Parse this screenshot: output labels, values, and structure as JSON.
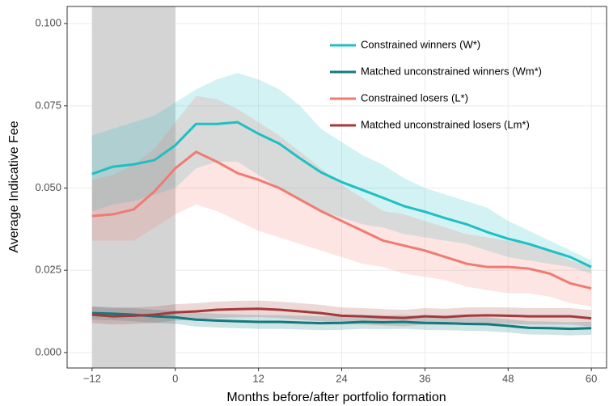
{
  "chart_data": {
    "type": "line",
    "x_label": "Months before/after portfolio formation",
    "y_label": "Average Indicative Fee",
    "xlim": [
      -15.6,
      62.2
    ],
    "ylim": [
      -0.0047,
      0.1052
    ],
    "xticks": [
      {
        "value": -12,
        "label": "−12"
      },
      0,
      12,
      24,
      36,
      48,
      60
    ],
    "yticks": [
      {
        "value": 0,
        "label": "0.000"
      },
      {
        "value": 0.025,
        "label": "0.025"
      },
      {
        "value": 0.05,
        "label": "0.050"
      },
      {
        "value": 0.075,
        "label": "0.075"
      },
      {
        "value": 0.1,
        "label": "0.100"
      }
    ],
    "grid": true,
    "legend_position": "top-right",
    "shaded_region": {
      "x": [
        -12,
        0
      ],
      "color": "#d4d4d4"
    },
    "band_opacity": 0.2,
    "x": [
      -12,
      -9,
      -6,
      -3,
      0,
      3,
      6,
      9,
      12,
      15,
      18,
      21,
      24,
      27,
      30,
      33,
      36,
      39,
      42,
      45,
      48,
      51,
      54,
      57,
      60
    ],
    "series": [
      {
        "name": "Constrained winners (W*)",
        "color": "#1fbfc4",
        "values": [
          0.0543,
          0.0565,
          0.0572,
          0.0585,
          0.063,
          0.0695,
          0.0695,
          0.07,
          0.0665,
          0.0635,
          0.059,
          0.0548,
          0.0518,
          0.0494,
          0.047,
          0.0445,
          0.0428,
          0.0408,
          0.039,
          0.0366,
          0.0346,
          0.033,
          0.031,
          0.029,
          0.026
        ],
        "upper": [
          0.066,
          0.068,
          0.07,
          0.072,
          0.076,
          0.08,
          0.083,
          0.085,
          0.083,
          0.08,
          0.075,
          0.068,
          0.064,
          0.06,
          0.057,
          0.053,
          0.05,
          0.048,
          0.046,
          0.044,
          0.04,
          0.037,
          0.034,
          0.031,
          0.028
        ],
        "lower": [
          0.043,
          0.045,
          0.046,
          0.048,
          0.05,
          0.056,
          0.058,
          0.058,
          0.054,
          0.05,
          0.046,
          0.043,
          0.041,
          0.039,
          0.038,
          0.036,
          0.035,
          0.034,
          0.033,
          0.031,
          0.029,
          0.028,
          0.027,
          0.026,
          0.024
        ]
      },
      {
        "name": "Matched unconstrained winners (Wm*)",
        "color": "#117a7f",
        "values": [
          0.012,
          0.0118,
          0.0115,
          0.011,
          0.0107,
          0.01,
          0.0097,
          0.0095,
          0.0093,
          0.0093,
          0.0091,
          0.0089,
          0.009,
          0.0093,
          0.0092,
          0.0093,
          0.009,
          0.0089,
          0.0087,
          0.0086,
          0.0081,
          0.0075,
          0.0074,
          0.0072,
          0.0074
        ],
        "upper": [
          0.014,
          0.0138,
          0.0135,
          0.013,
          0.0127,
          0.0121,
          0.0118,
          0.0116,
          0.0114,
          0.0114,
          0.0112,
          0.011,
          0.0111,
          0.0114,
          0.0113,
          0.0114,
          0.0111,
          0.011,
          0.0108,
          0.0107,
          0.0101,
          0.0095,
          0.0094,
          0.0092,
          0.0094
        ],
        "lower": [
          0.01,
          0.0098,
          0.0095,
          0.009,
          0.0087,
          0.0079,
          0.0076,
          0.0074,
          0.0072,
          0.0072,
          0.007,
          0.0068,
          0.0069,
          0.0072,
          0.0071,
          0.0072,
          0.0069,
          0.0068,
          0.0066,
          0.0065,
          0.0061,
          0.0055,
          0.0054,
          0.0052,
          0.0054
        ]
      },
      {
        "name": "Constrained losers (L*)",
        "color": "#f07b72",
        "values": [
          0.0415,
          0.042,
          0.0435,
          0.049,
          0.056,
          0.061,
          0.058,
          0.0545,
          0.0525,
          0.05,
          0.0465,
          0.043,
          0.04,
          0.037,
          0.034,
          0.0325,
          0.031,
          0.029,
          0.027,
          0.026,
          0.026,
          0.0255,
          0.024,
          0.021,
          0.0195
        ],
        "upper": [
          0.0525,
          0.054,
          0.057,
          0.062,
          0.07,
          0.078,
          0.077,
          0.074,
          0.07,
          0.066,
          0.061,
          0.056,
          0.051,
          0.047,
          0.043,
          0.042,
          0.04,
          0.038,
          0.036,
          0.035,
          0.034,
          0.033,
          0.031,
          0.028,
          0.026
        ],
        "lower": [
          0.034,
          0.034,
          0.034,
          0.038,
          0.042,
          0.045,
          0.043,
          0.04,
          0.037,
          0.035,
          0.033,
          0.031,
          0.029,
          0.027,
          0.026,
          0.024,
          0.023,
          0.022,
          0.02,
          0.019,
          0.018,
          0.018,
          0.017,
          0.015,
          0.014
        ]
      },
      {
        "name": "Matched unconstrained losers (Lm*)",
        "color": "#a33a3a",
        "values": [
          0.0115,
          0.011,
          0.0112,
          0.0115,
          0.0122,
          0.0125,
          0.013,
          0.0132,
          0.0133,
          0.013,
          0.0125,
          0.012,
          0.0112,
          0.011,
          0.0107,
          0.0105,
          0.011,
          0.0108,
          0.0112,
          0.0113,
          0.0112,
          0.011,
          0.011,
          0.011,
          0.0104
        ],
        "upper": [
          0.014,
          0.0135,
          0.0137,
          0.014,
          0.0147,
          0.015,
          0.0155,
          0.0157,
          0.0158,
          0.0155,
          0.015,
          0.0145,
          0.0137,
          0.0135,
          0.0132,
          0.013,
          0.0135,
          0.0133,
          0.0137,
          0.0138,
          0.0137,
          0.0135,
          0.0135,
          0.0135,
          0.0129
        ],
        "lower": [
          0.009,
          0.0085,
          0.0087,
          0.009,
          0.0097,
          0.01,
          0.0105,
          0.0107,
          0.0108,
          0.0105,
          0.01,
          0.0095,
          0.0087,
          0.0085,
          0.0082,
          0.008,
          0.0085,
          0.0083,
          0.0087,
          0.0088,
          0.0087,
          0.0085,
          0.0085,
          0.0085,
          0.0079
        ]
      }
    ]
  }
}
